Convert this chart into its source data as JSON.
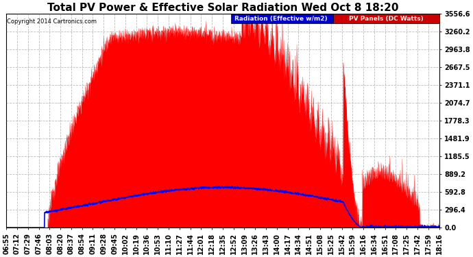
{
  "title": "Total PV Power & Effective Solar Radiation Wed Oct 8 18:20",
  "copyright": "Copyright 2014 Cartronics.com",
  "legend_radiation": "Radiation (Effective w/m2)",
  "legend_pv": "PV Panels (DC Watts)",
  "y_max": 3556.6,
  "y_min": 0.0,
  "y_ticks": [
    0.0,
    296.4,
    592.8,
    889.2,
    1185.5,
    1481.9,
    1778.3,
    2074.7,
    2371.1,
    2667.5,
    2963.8,
    3260.2,
    3556.6
  ],
  "x_labels": [
    "06:55",
    "07:12",
    "07:29",
    "07:46",
    "08:03",
    "08:20",
    "08:37",
    "08:54",
    "09:11",
    "09:28",
    "09:45",
    "10:02",
    "10:19",
    "10:36",
    "10:53",
    "11:10",
    "11:27",
    "11:44",
    "12:01",
    "12:18",
    "12:35",
    "12:52",
    "13:09",
    "13:26",
    "13:43",
    "14:00",
    "14:17",
    "14:34",
    "14:51",
    "15:08",
    "15:25",
    "15:42",
    "15:59",
    "16:16",
    "16:34",
    "16:51",
    "17:08",
    "17:25",
    "17:42",
    "17:59",
    "18:16"
  ],
  "background_color": "#ffffff",
  "plot_bg_color": "#ffffff",
  "grid_color": "#bbbbbb",
  "pv_fill_color": "#ff0000",
  "radiation_line_color": "#0000ff",
  "title_fontsize": 11,
  "tick_fontsize": 7,
  "legend_rad_bg": "#0000cc",
  "legend_pv_bg": "#cc0000"
}
